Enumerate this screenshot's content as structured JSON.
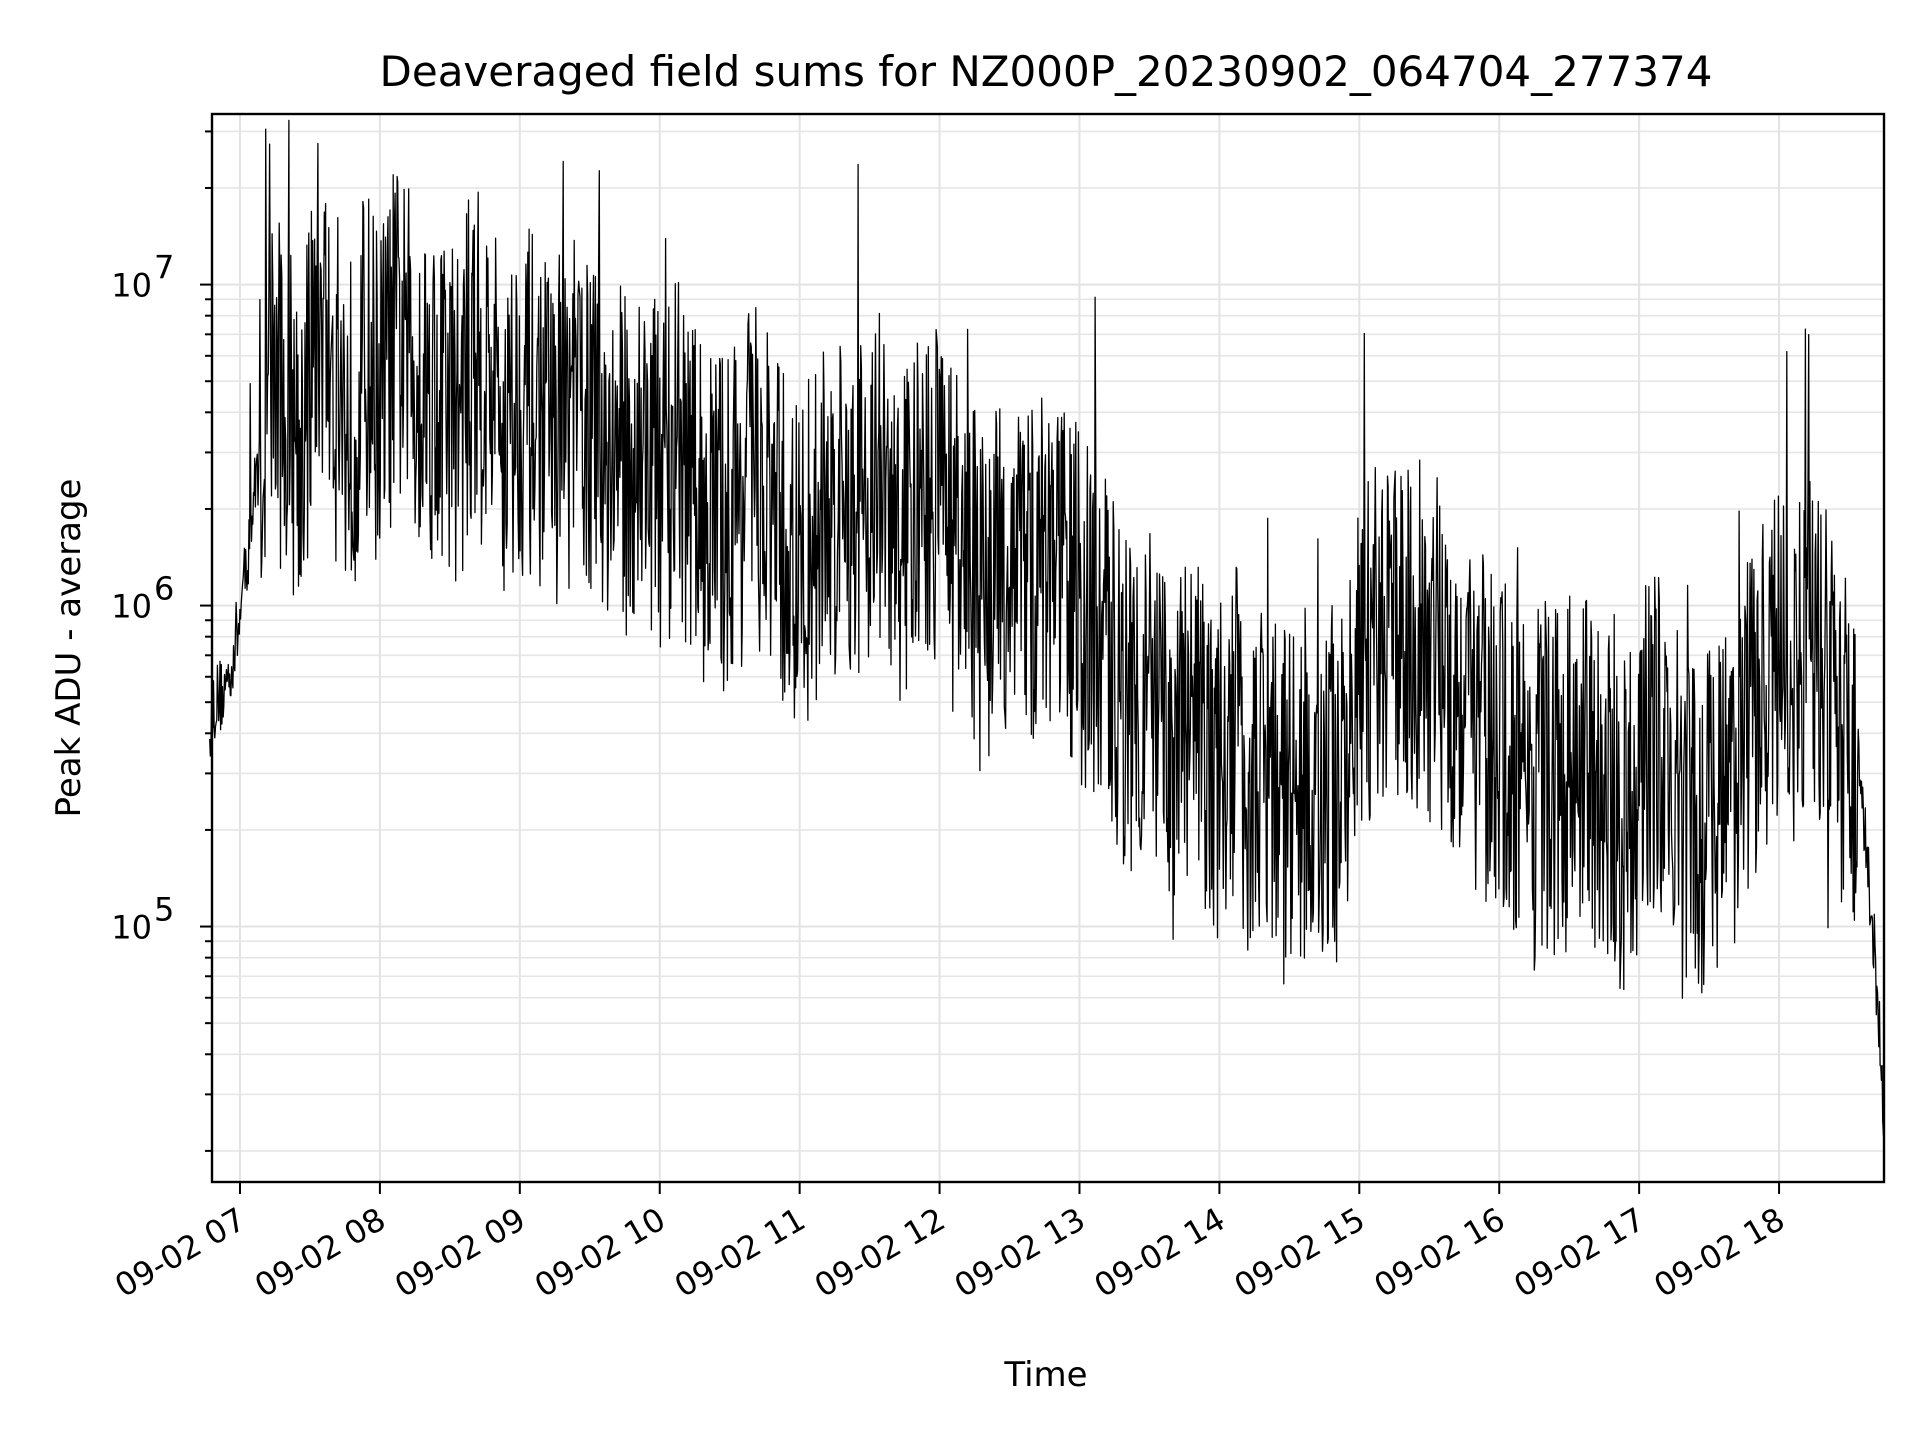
{
  "chart_data": {
    "type": "line",
    "title": "Deaveraged field sums for NZ000P_20230902_064704_277374",
    "xlabel": "Time",
    "ylabel": "Peak ADU - average",
    "y_scale": "log",
    "grid": "on (major and minor)",
    "xlim": [
      "2023-09-02T06:48",
      "2023-09-02T18:45"
    ],
    "ylim": [
      16000,
      34000000
    ],
    "x_ticks": [
      "09-02 07",
      "09-02 08",
      "09-02 09",
      "09-02 10",
      "09-02 11",
      "09-02 12",
      "09-02 13",
      "09-02 14",
      "09-02 15",
      "09-02 16",
      "09-02 17",
      "09-02 18"
    ],
    "y_ticks": [
      {
        "value": 100000,
        "base": "10",
        "exp": "5"
      },
      {
        "value": 1000000,
        "base": "10",
        "exp": "6"
      },
      {
        "value": 10000000,
        "base": "10",
        "exp": "7"
      }
    ],
    "series": [
      {
        "color": "#000000",
        "x": [
          "2023-09-02T06:47",
          "2023-09-02T06:54",
          "2023-09-02T07:00",
          "2023-09-02T07:07",
          "2023-09-02T07:14",
          "2023-09-02T07:20",
          "2023-09-02T07:27",
          "2023-09-02T07:34",
          "2023-09-02T07:40",
          "2023-09-02T07:47",
          "2023-09-02T07:54",
          "2023-09-02T08:00",
          "2023-09-02T08:07",
          "2023-09-02T08:14",
          "2023-09-02T08:20",
          "2023-09-02T08:27",
          "2023-09-02T08:34",
          "2023-09-02T08:40",
          "2023-09-02T08:47",
          "2023-09-02T08:54",
          "2023-09-02T09:00",
          "2023-09-02T09:07",
          "2023-09-02T09:14",
          "2023-09-02T09:20",
          "2023-09-02T09:27",
          "2023-09-02T09:34",
          "2023-09-02T09:40",
          "2023-09-02T09:47",
          "2023-09-02T09:54",
          "2023-09-02T10:00",
          "2023-09-02T10:07",
          "2023-09-02T10:14",
          "2023-09-02T10:20",
          "2023-09-02T10:27",
          "2023-09-02T10:34",
          "2023-09-02T10:40",
          "2023-09-02T10:47",
          "2023-09-02T10:54",
          "2023-09-02T11:00",
          "2023-09-02T11:07",
          "2023-09-02T11:14",
          "2023-09-02T11:20",
          "2023-09-02T11:27",
          "2023-09-02T11:34",
          "2023-09-02T11:40",
          "2023-09-02T11:47",
          "2023-09-02T11:54",
          "2023-09-02T12:00",
          "2023-09-02T12:07",
          "2023-09-02T12:14",
          "2023-09-02T12:20",
          "2023-09-02T12:27",
          "2023-09-02T12:34",
          "2023-09-02T12:40",
          "2023-09-02T12:47",
          "2023-09-02T12:54",
          "2023-09-02T13:00",
          "2023-09-02T13:07",
          "2023-09-02T13:14",
          "2023-09-02T13:20",
          "2023-09-02T13:27",
          "2023-09-02T13:34",
          "2023-09-02T13:40",
          "2023-09-02T13:47",
          "2023-09-02T13:54",
          "2023-09-02T14:00",
          "2023-09-02T14:07",
          "2023-09-02T14:14",
          "2023-09-02T14:20",
          "2023-09-02T14:27",
          "2023-09-02T14:34",
          "2023-09-02T14:40",
          "2023-09-02T14:47",
          "2023-09-02T14:54",
          "2023-09-02T15:00",
          "2023-09-02T15:07",
          "2023-09-02T15:14",
          "2023-09-02T15:20",
          "2023-09-02T15:27",
          "2023-09-02T15:34",
          "2023-09-02T15:40",
          "2023-09-02T15:47",
          "2023-09-02T15:54",
          "2023-09-02T16:00",
          "2023-09-02T16:07",
          "2023-09-02T16:14",
          "2023-09-02T16:20",
          "2023-09-02T16:27",
          "2023-09-02T16:34",
          "2023-09-02T16:40",
          "2023-09-02T16:47",
          "2023-09-02T16:54",
          "2023-09-02T17:00",
          "2023-09-02T17:07",
          "2023-09-02T17:14",
          "2023-09-02T17:20",
          "2023-09-02T17:27",
          "2023-09-02T17:34",
          "2023-09-02T17:40",
          "2023-09-02T17:47",
          "2023-09-02T17:54",
          "2023-09-02T18:00",
          "2023-09-02T18:07",
          "2023-09-02T18:14",
          "2023-09-02T18:20",
          "2023-09-02T18:27",
          "2023-09-02T18:34",
          "2023-09-02T18:40",
          "2023-09-02T18:45"
        ],
        "y": [
          480000,
          550000,
          900000,
          2500000,
          5500000,
          4000000,
          3500000,
          9000000,
          5000000,
          3500000,
          6000000,
          4500000,
          7000000,
          5500000,
          5000000,
          4500000,
          4000000,
          6000000,
          5000000,
          3500000,
          4500000,
          4000000,
          3500000,
          3800000,
          4000000,
          3200000,
          3000000,
          2800000,
          3200000,
          2500000,
          3000000,
          2200000,
          2000000,
          1800000,
          2200000,
          2500000,
          2000000,
          1500000,
          1200000,
          1800000,
          2000000,
          1800000,
          2200000,
          2500000,
          1500000,
          1800000,
          2000000,
          2500000,
          1500000,
          1200000,
          1000000,
          1300000,
          1500000,
          1200000,
          1500000,
          1300000,
          1000000,
          800000,
          700000,
          500000,
          600000,
          400000,
          300000,
          450000,
          350000,
          300000,
          400000,
          250000,
          300000,
          280000,
          250000,
          200000,
          300000,
          250000,
          600000,
          800000,
          700000,
          900000,
          800000,
          700000,
          600000,
          500000,
          400000,
          350000,
          300000,
          250000,
          300000,
          280000,
          350000,
          300000,
          250000,
          200000,
          300000,
          400000,
          250000,
          220000,
          200000,
          250000,
          300000,
          400000,
          600000,
          700000,
          600000,
          800000,
          600000,
          400000,
          300000,
          100000,
          25000
        ]
      }
    ]
  }
}
